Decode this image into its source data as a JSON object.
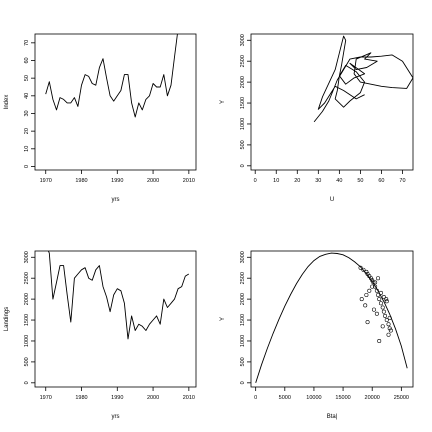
{
  "chart_data": [
    {
      "type": "line",
      "xlabel": "yrs",
      "ylabel": "Index",
      "xlim": [
        1967,
        2012
      ],
      "ylim": [
        -2,
        75
      ],
      "xticks": [
        1970,
        1980,
        1990,
        2000,
        2010
      ],
      "yticks": [
        0,
        10,
        20,
        30,
        40,
        50,
        60,
        70
      ],
      "series": [
        {
          "x": [
            1970,
            1971,
            1972,
            1973,
            1974,
            1975,
            1976,
            1977,
            1978,
            1979,
            1980,
            1981,
            1982,
            1983,
            1984,
            1985,
            1986,
            1987,
            1988,
            1989,
            1990,
            1991,
            1992,
            1993,
            1994,
            1995,
            1996,
            1997,
            1998,
            1999,
            2000,
            2001,
            2002,
            2003,
            2004,
            2005,
            2006,
            2007
          ],
          "y": [
            41,
            48,
            38,
            32,
            39,
            38,
            36,
            36,
            39,
            34,
            46,
            52,
            51,
            47,
            46,
            56,
            61,
            50,
            40,
            37,
            40,
            43,
            52,
            52,
            36,
            28,
            36,
            32,
            38,
            40,
            47,
            45,
            45,
            52,
            40,
            46,
            62,
            78
          ]
        }
      ]
    },
    {
      "type": "line",
      "xlabel": "U",
      "ylabel": "Y",
      "xlim": [
        -2,
        75
      ],
      "ylim": [
        -100,
        3150
      ],
      "xticks": [
        0,
        10,
        20,
        30,
        40,
        50,
        60,
        70
      ],
      "yticks": [
        0,
        500,
        1000,
        1500,
        2000,
        2500,
        3000
      ],
      "series": [
        {
          "x": [
            28,
            32,
            35,
            37,
            39,
            42,
            45,
            50,
            55,
            60,
            65,
            70,
            75,
            72,
            65,
            60,
            55,
            50,
            47,
            48,
            55,
            52,
            58,
            53,
            48,
            45,
            52,
            47,
            43,
            40,
            43,
            48,
            52,
            50,
            45,
            42,
            38,
            39,
            40,
            41,
            42,
            43,
            42,
            40,
            38,
            32,
            30,
            33,
            38,
            42,
            48,
            52
          ],
          "y": [
            1050,
            1300,
            1550,
            1800,
            2050,
            2300,
            2550,
            2600,
            2600,
            2620,
            2650,
            2500,
            2100,
            1850,
            1870,
            1900,
            1950,
            2000,
            2200,
            2550,
            2700,
            2550,
            2500,
            2350,
            2300,
            2450,
            2200,
            2100,
            1950,
            2150,
            2400,
            2250,
            2000,
            1750,
            1550,
            1400,
            1600,
            1800,
            2150,
            2400,
            2700,
            3000,
            3100,
            2700,
            2300,
            1650,
            1350,
            1500,
            1900,
            1800,
            1600,
            1700
          ]
        }
      ]
    },
    {
      "type": "line",
      "xlabel": "yrs",
      "ylabel": "Landings",
      "xlim": [
        1967,
        2012
      ],
      "ylim": [
        -100,
        3150
      ],
      "xticks": [
        1970,
        1980,
        1990,
        2000,
        2010
      ],
      "yticks": [
        0,
        500,
        1000,
        1500,
        2000,
        2500,
        3000
      ],
      "series": [
        {
          "x": [
            1970,
            1971,
            1972,
            1973,
            1974,
            1975,
            1976,
            1977,
            1978,
            1979,
            1980,
            1981,
            1982,
            1983,
            1984,
            1985,
            1986,
            1987,
            1988,
            1989,
            1990,
            1991,
            1992,
            1993,
            1994,
            1995,
            1996,
            1997,
            1998,
            1999,
            2000,
            2001,
            2002,
            2003,
            2004,
            2005,
            2006,
            2007,
            2008,
            2009,
            2010
          ],
          "y": [
            3300,
            3100,
            2000,
            2400,
            2800,
            2800,
            2100,
            1450,
            2500,
            2600,
            2700,
            2750,
            2500,
            2450,
            2700,
            2800,
            2300,
            2050,
            1700,
            2100,
            2250,
            2200,
            1900,
            1050,
            1600,
            1250,
            1400,
            1350,
            1250,
            1400,
            1500,
            1600,
            1400,
            2000,
            1800,
            1900,
            2000,
            2250,
            2300,
            2550,
            2600
          ]
        }
      ]
    },
    {
      "type": "scatter",
      "xlabel": "Bta|",
      "ylabel": "Y",
      "xlim": [
        -800,
        27000
      ],
      "ylim": [
        -100,
        3150
      ],
      "xticks": [
        0,
        5000,
        10000,
        15000,
        20000,
        25000
      ],
      "yticks": [
        0,
        500,
        1000,
        1500,
        2000,
        2500,
        3000
      ],
      "curve": {
        "x": [
          0,
          1000,
          2000,
          3000,
          4000,
          5000,
          6000,
          7000,
          8000,
          9000,
          10000,
          11000,
          12000,
          13000,
          14000,
          15000,
          16000,
          17000,
          18000,
          19000,
          20000,
          21000,
          22000,
          23000,
          24000,
          25000,
          26000
        ],
        "y": [
          0,
          430,
          820,
          1180,
          1520,
          1830,
          2110,
          2370,
          2590,
          2780,
          2920,
          3020,
          3070,
          3100,
          3090,
          3060,
          2990,
          2890,
          2770,
          2610,
          2420,
          2200,
          1940,
          1640,
          1290,
          880,
          350
        ]
      },
      "points": {
        "x": [
          18000,
          18500,
          19000,
          19200,
          19500,
          19800,
          20000,
          20200,
          20500,
          20800,
          21000,
          21200,
          21500,
          21800,
          22000,
          22200,
          22500,
          22800,
          23000,
          23200,
          18200,
          19000,
          19500,
          20000,
          20500,
          21000,
          21500,
          22000,
          22500,
          23000,
          19200,
          20800,
          21800,
          22800,
          18800,
          20300,
          21200,
          22400
        ],
        "y": [
          2750,
          2700,
          2650,
          2600,
          2550,
          2500,
          2450,
          2400,
          2300,
          2200,
          2100,
          2000,
          1900,
          1800,
          1700,
          1600,
          1500,
          1400,
          1300,
          1250,
          2000,
          2100,
          2200,
          2300,
          2400,
          2500,
          2150,
          2050,
          1950,
          1550,
          1450,
          1650,
          1350,
          1150,
          1850,
          1750,
          1000,
          2000
        ]
      }
    }
  ]
}
